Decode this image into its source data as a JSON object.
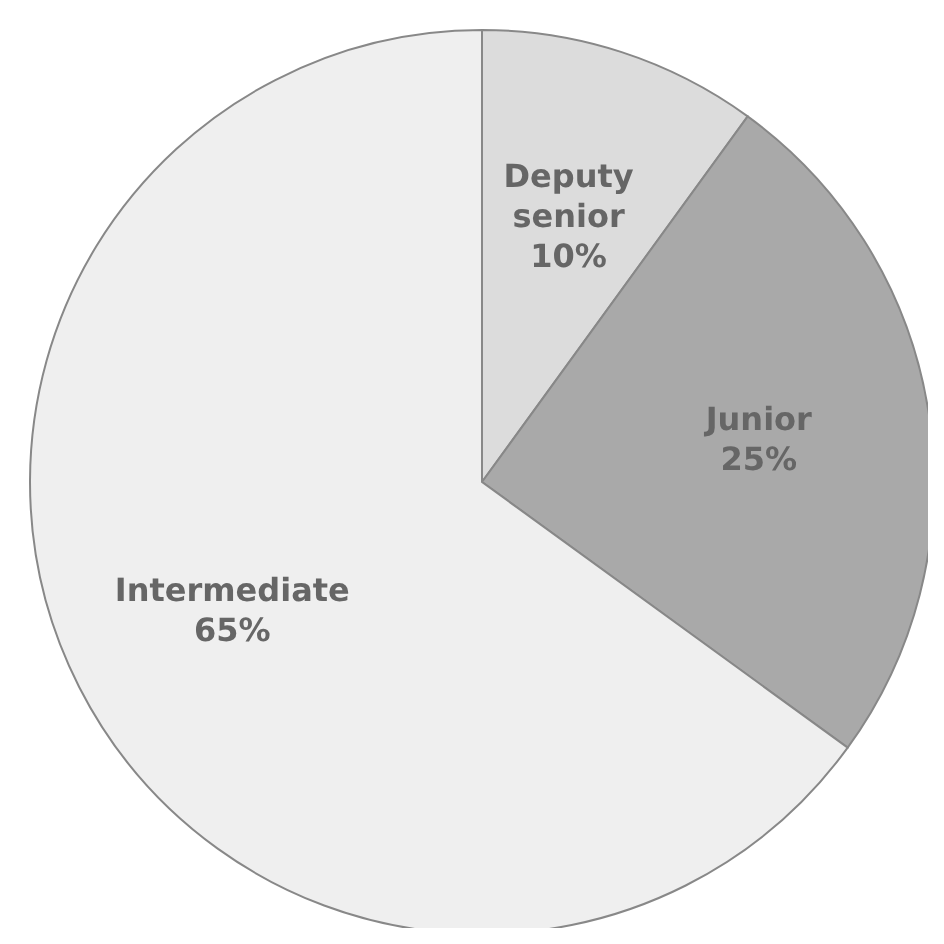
{
  "chart_data": {
    "type": "pie",
    "categories": [
      "Deputy senior",
      "Junior",
      "Intermediate"
    ],
    "values": [
      10,
      25,
      65
    ],
    "colors": [
      "#dcdcdc",
      "#a9a9a9",
      "#efefef"
    ],
    "value_labels": [
      "10%",
      "25%",
      "65%"
    ]
  }
}
